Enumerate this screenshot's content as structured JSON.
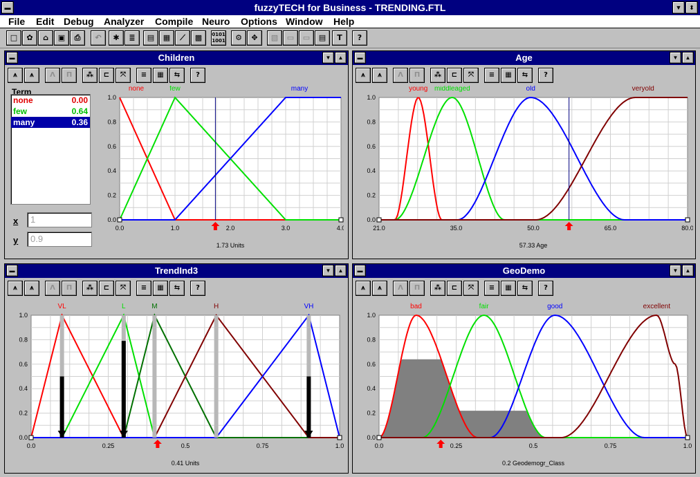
{
  "app": {
    "title": "fuzzyTECH for Business  -  TRENDING.FTL"
  },
  "menu": [
    "File",
    "Edit",
    "Debug",
    "Analyzer",
    "Compile",
    "Neuro",
    "Options",
    "Window",
    "Help"
  ],
  "toolbar_icons": [
    "new-icon",
    "open-editor-icon",
    "open-folder-icon",
    "save-icon",
    "print-icon",
    "undo-icon",
    "debug-bug-icon",
    "compile-icon",
    "analyzer-icon",
    "transfer-plot-icon",
    "time-plot-icon",
    "neuro-icon",
    "binary-icon",
    "neuro-config-icon",
    "window-icon",
    "window-icon-2",
    "window-icon-3",
    "window-icon-4",
    "text-icon",
    "help-icon"
  ],
  "panel_toolbar_icons": [
    "ms-function-icon",
    "ms-function-2-icon",
    "lambda-disabled-icon",
    "pi-disabled-icon",
    "add-term-icon",
    "delete-term-icon",
    "shift-term-icon",
    "list-view-icon",
    "grid-icon",
    "edit-icon",
    "help-icon"
  ],
  "colors": {
    "red": "#ff0000",
    "green": "#00e000",
    "blue": "#0000ff",
    "darkred": "#800000",
    "darkgreen": "#007000"
  },
  "panels": {
    "children": {
      "title": "Children",
      "term_header": "Term",
      "terms": [
        {
          "name": "none",
          "value": "0.00",
          "color": "#e00000"
        },
        {
          "name": "few",
          "value": "0.64",
          "color": "#00d000"
        },
        {
          "name": "many",
          "value": "0.36",
          "color": "#ffffff"
        }
      ],
      "x_label": "x",
      "y_label": "y",
      "x_value": "1",
      "y_value": "0.9",
      "chart_title_labels": [
        "none",
        "few",
        "many"
      ],
      "readout": "1.73 Units"
    },
    "age": {
      "title": "Age",
      "readout": "57.33 Age"
    },
    "trend": {
      "title": "TrendInd3",
      "readout": "0.41 Units"
    },
    "geo": {
      "title": "GeoDemo",
      "readout": "0.2 Geodemogr_Class"
    }
  },
  "chart_data": [
    {
      "type": "line",
      "variable": "Children",
      "xlim": [
        0,
        4
      ],
      "ylim": [
        0,
        1
      ],
      "xticks": [
        "0.0",
        "1.0",
        "2.0",
        "3.0",
        "4.0"
      ],
      "yticks": [
        "0.0",
        "0.2",
        "0.4",
        "0.6",
        "0.8",
        "1.0"
      ],
      "cursor": 1.73,
      "xlabel": "1.73 Units",
      "series": [
        {
          "name": "none",
          "color": "#ff0000",
          "shape": "linear",
          "points": [
            [
              0,
              1
            ],
            [
              1,
              0
            ],
            [
              4,
              0
            ]
          ]
        },
        {
          "name": "few",
          "color": "#00e000",
          "shape": "linear",
          "points": [
            [
              0,
              0
            ],
            [
              1,
              1
            ],
            [
              3,
              0
            ],
            [
              4,
              0
            ]
          ]
        },
        {
          "name": "many",
          "color": "#0000ff",
          "shape": "linear",
          "points": [
            [
              0,
              0
            ],
            [
              1,
              0
            ],
            [
              3,
              1
            ],
            [
              4,
              1
            ]
          ]
        }
      ]
    },
    {
      "type": "line",
      "variable": "Age",
      "xlim": [
        21,
        80
      ],
      "ylim": [
        0,
        1
      ],
      "xticks": [
        "21.0",
        "35.0",
        "50.0",
        "65.0",
        "80.0"
      ],
      "yticks": [
        "0.0",
        "0.2",
        "0.4",
        "0.6",
        "0.8",
        "1.0"
      ],
      "cursor": 57.33,
      "xlabel": "57.33 Age",
      "series": [
        {
          "name": "young",
          "color": "#ff0000",
          "shape": "bell",
          "points": [
            [
              21,
              0
            ],
            [
              24,
              0
            ],
            [
              28.5,
              1
            ],
            [
              33,
              0
            ],
            [
              80,
              0
            ]
          ]
        },
        {
          "name": "middleaged",
          "color": "#00e000",
          "shape": "bell",
          "points": [
            [
              21,
              0
            ],
            [
              24,
              0
            ],
            [
              35,
              1
            ],
            [
              45,
              0
            ],
            [
              80,
              0
            ]
          ]
        },
        {
          "name": "old",
          "color": "#0000ff",
          "shape": "bell",
          "points": [
            [
              21,
              0
            ],
            [
              36,
              0
            ],
            [
              50,
              1
            ],
            [
              68,
              0
            ],
            [
              80,
              0
            ]
          ]
        },
        {
          "name": "veryold",
          "color": "#800000",
          "shape": "bell",
          "points": [
            [
              21,
              0
            ],
            [
              51,
              0
            ],
            [
              70,
              1
            ],
            [
              80,
              1
            ]
          ]
        }
      ]
    },
    {
      "type": "line",
      "variable": "TrendInd3",
      "xlim": [
        0,
        1
      ],
      "ylim": [
        0,
        1
      ],
      "xticks": [
        "0.0",
        "0.25",
        "0.5",
        "0.75",
        "1.0"
      ],
      "yticks": [
        "0.0",
        "0.2",
        "0.4",
        "0.6",
        "0.8",
        "1.0"
      ],
      "cursor": 0.41,
      "xlabel": "0.41 Units",
      "series": [
        {
          "name": "VL",
          "color": "#ff0000",
          "shape": "linear",
          "points": [
            [
              0,
              0
            ],
            [
              0.1,
              1
            ],
            [
              0.3,
              0
            ],
            [
              1,
              0
            ]
          ]
        },
        {
          "name": "L",
          "color": "#00e000",
          "shape": "linear",
          "points": [
            [
              0,
              0
            ],
            [
              0.1,
              0
            ],
            [
              0.3,
              1
            ],
            [
              0.4,
              0
            ],
            [
              1,
              0
            ]
          ]
        },
        {
          "name": "M",
          "color": "#007000",
          "shape": "linear",
          "points": [
            [
              0,
              0
            ],
            [
              0.3,
              0
            ],
            [
              0.4,
              1
            ],
            [
              0.6,
              0
            ],
            [
              1,
              0
            ]
          ]
        },
        {
          "name": "H",
          "color": "#800000",
          "shape": "linear",
          "points": [
            [
              0,
              0
            ],
            [
              0.4,
              0
            ],
            [
              0.6,
              1
            ],
            [
              0.9,
              0
            ],
            [
              1,
              0
            ]
          ]
        },
        {
          "name": "VH",
          "color": "#0000ff",
          "shape": "linear",
          "points": [
            [
              0,
              0
            ],
            [
              0.6,
              0
            ],
            [
              0.9,
              1
            ],
            [
              1,
              0
            ]
          ]
        }
      ],
      "singletons": [
        {
          "x": 0.1,
          "weight": 0.5
        },
        {
          "x": 0.3,
          "weight": 0.79
        },
        {
          "x": 0.4,
          "weight": 0
        },
        {
          "x": 0.6,
          "weight": 0
        },
        {
          "x": 0.9,
          "weight": 0.5
        }
      ]
    },
    {
      "type": "area",
      "variable": "GeoDemo",
      "xlim": [
        0,
        1
      ],
      "ylim": [
        0,
        1
      ],
      "xticks": [
        "0.0",
        "0.25",
        "0.5",
        "0.75",
        "1.0"
      ],
      "yticks": [
        "0.0",
        "0.2",
        "0.4",
        "0.6",
        "0.8",
        "1.0"
      ],
      "cursor": 0.2,
      "xlabel": "0.2 Geodemogr_Class",
      "series": [
        {
          "name": "bad",
          "color": "#ff0000",
          "shape": "bell",
          "points": [
            [
              0,
              0
            ],
            [
              0.12,
              1
            ],
            [
              0.32,
              0
            ],
            [
              1,
              0
            ]
          ]
        },
        {
          "name": "fair",
          "color": "#00e000",
          "shape": "bell",
          "points": [
            [
              0,
              0
            ],
            [
              0.14,
              0
            ],
            [
              0.34,
              1
            ],
            [
              0.54,
              0
            ],
            [
              1,
              0
            ]
          ]
        },
        {
          "name": "good",
          "color": "#0000ff",
          "shape": "bell",
          "points": [
            [
              0,
              0
            ],
            [
              0.36,
              0
            ],
            [
              0.57,
              1
            ],
            [
              0.86,
              0
            ],
            [
              1,
              0
            ]
          ]
        },
        {
          "name": "excellent",
          "color": "#800000",
          "shape": "bell",
          "points": [
            [
              0,
              0
            ],
            [
              0.59,
              0
            ],
            [
              0.9,
              1
            ],
            [
              0.96,
              0.6
            ],
            [
              1,
              0
            ]
          ]
        }
      ],
      "fill": {
        "color": "#808080",
        "clip_levels": [
          0.64,
          0.22
        ]
      }
    }
  ]
}
